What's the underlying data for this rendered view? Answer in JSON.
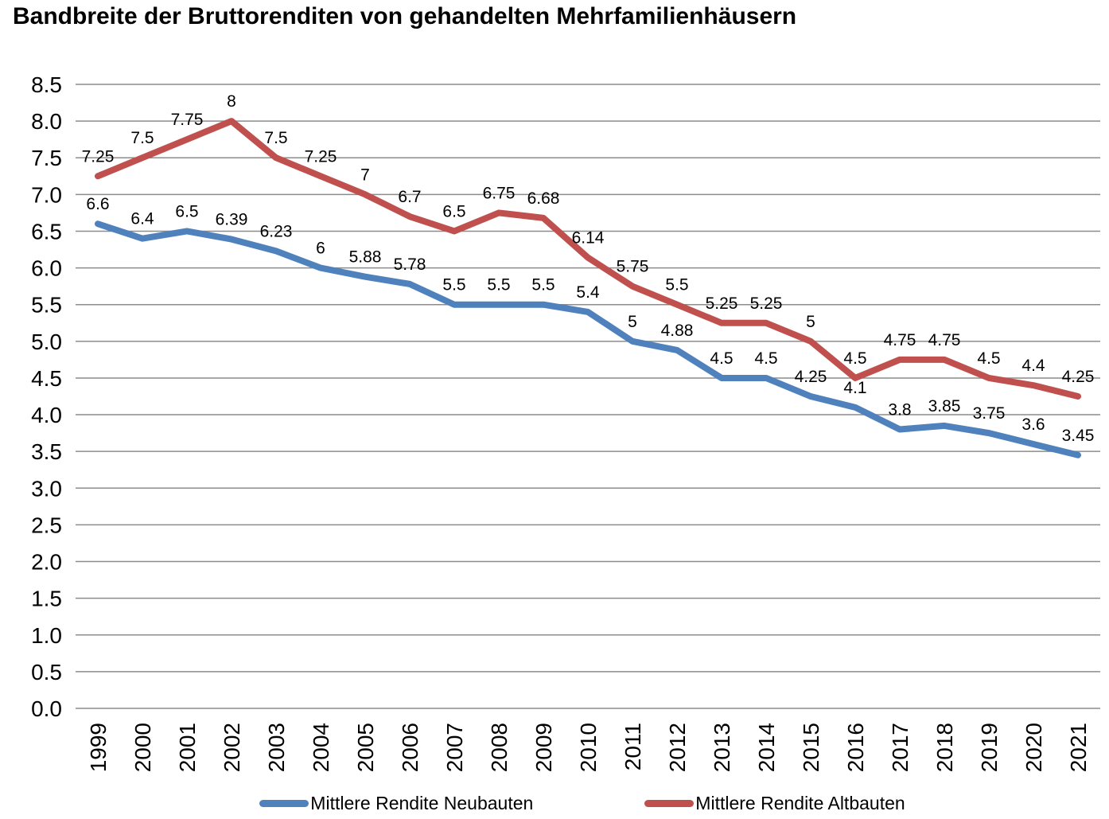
{
  "title": "Bandbreite der Bruttorenditen von gehandelten Mehrfamilienhäusern",
  "chart_data": {
    "type": "line",
    "title": "Bandbreite der Bruttorenditen von gehandelten Mehrfamilienhäusern",
    "categories": [
      "1999",
      "2000",
      "2001",
      "2002",
      "2003",
      "2004",
      "2005",
      "2006",
      "2007",
      "2008",
      "2009",
      "2010",
      "2011",
      "2012",
      "2013",
      "2014",
      "2015",
      "2016",
      "2017",
      "2018",
      "2019",
      "2020",
      "2021"
    ],
    "series": [
      {
        "name": "Mittlere Rendite Neubauten",
        "color": "#4F81BD",
        "values": [
          6.6,
          6.4,
          6.5,
          6.39,
          6.23,
          6,
          5.88,
          5.78,
          5.5,
          5.5,
          5.5,
          5.4,
          5,
          4.88,
          4.5,
          4.5,
          4.25,
          4.1,
          3.8,
          3.85,
          3.75,
          3.6,
          3.45
        ]
      },
      {
        "name": "Mittlere Rendite Altbauten",
        "color": "#C0504D",
        "values": [
          7.25,
          7.5,
          7.75,
          8,
          7.5,
          7.25,
          7,
          6.7,
          6.5,
          6.75,
          6.68,
          6.14,
          5.75,
          5.5,
          5.25,
          5.25,
          5,
          4.5,
          4.75,
          4.75,
          4.5,
          4.4,
          4.25
        ]
      }
    ],
    "xlabel": "",
    "ylabel": "",
    "ylim": [
      0,
      8.5
    ],
    "ytick_step": 0.5,
    "ytick_format_decimals": 1,
    "grid": true,
    "gridline_color": "#8C8C8C",
    "data_labels": true,
    "data_label_color": "#000000",
    "legend_position": "bottom",
    "line_width": 8
  }
}
